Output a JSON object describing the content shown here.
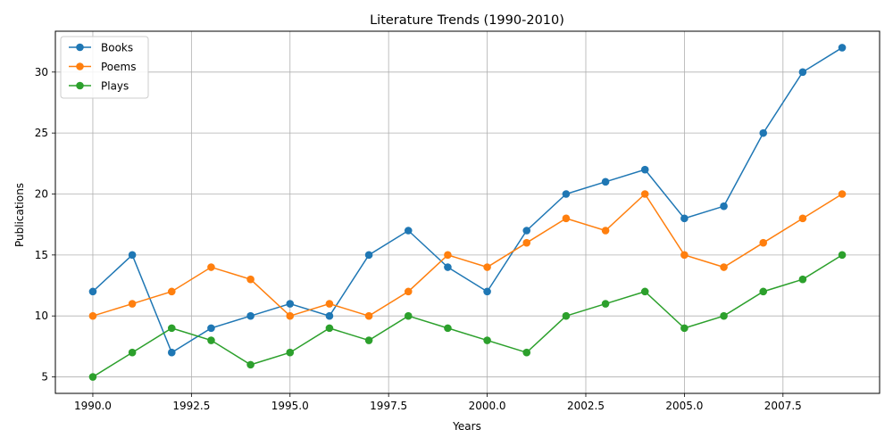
{
  "chart_data": {
    "type": "line",
    "title": "Literature Trends (1990-2010)",
    "xlabel": "Years",
    "ylabel": "Publications",
    "x": [
      1990,
      1991,
      1992,
      1993,
      1994,
      1995,
      1996,
      1997,
      1998,
      1999,
      2000,
      2001,
      2002,
      2003,
      2004,
      2005,
      2006,
      2007,
      2008,
      2009
    ],
    "xlim": [
      1989.05,
      2009.95
    ],
    "ylim": [
      3.65,
      33.35
    ],
    "xticks": [
      1990.0,
      1992.5,
      1995.0,
      1997.5,
      2000.0,
      2002.5,
      2005.0,
      2007.5
    ],
    "xtick_labels": [
      "1990.0",
      "1992.5",
      "1995.0",
      "1997.5",
      "2000.0",
      "2002.5",
      "2005.0",
      "2007.5"
    ],
    "yticks": [
      5,
      10,
      15,
      20,
      25,
      30
    ],
    "ytick_labels": [
      "5",
      "10",
      "15",
      "20",
      "25",
      "30"
    ],
    "grid": true,
    "legend_position": "top-left",
    "series": [
      {
        "name": "Books",
        "color": "#1f77b4",
        "values": [
          12,
          15,
          7,
          9,
          10,
          11,
          10,
          15,
          17,
          14,
          12,
          17,
          20,
          21,
          22,
          18,
          19,
          25,
          30,
          32
        ]
      },
      {
        "name": "Poems",
        "color": "#ff7f0e",
        "values": [
          10,
          11,
          12,
          14,
          13,
          10,
          11,
          10,
          12,
          15,
          14,
          16,
          18,
          17,
          20,
          15,
          14,
          16,
          18,
          20
        ]
      },
      {
        "name": "Plays",
        "color": "#2ca02c",
        "values": [
          5,
          7,
          9,
          8,
          6,
          7,
          9,
          8,
          10,
          9,
          8,
          7,
          10,
          11,
          12,
          9,
          10,
          12,
          13,
          15
        ]
      }
    ]
  }
}
